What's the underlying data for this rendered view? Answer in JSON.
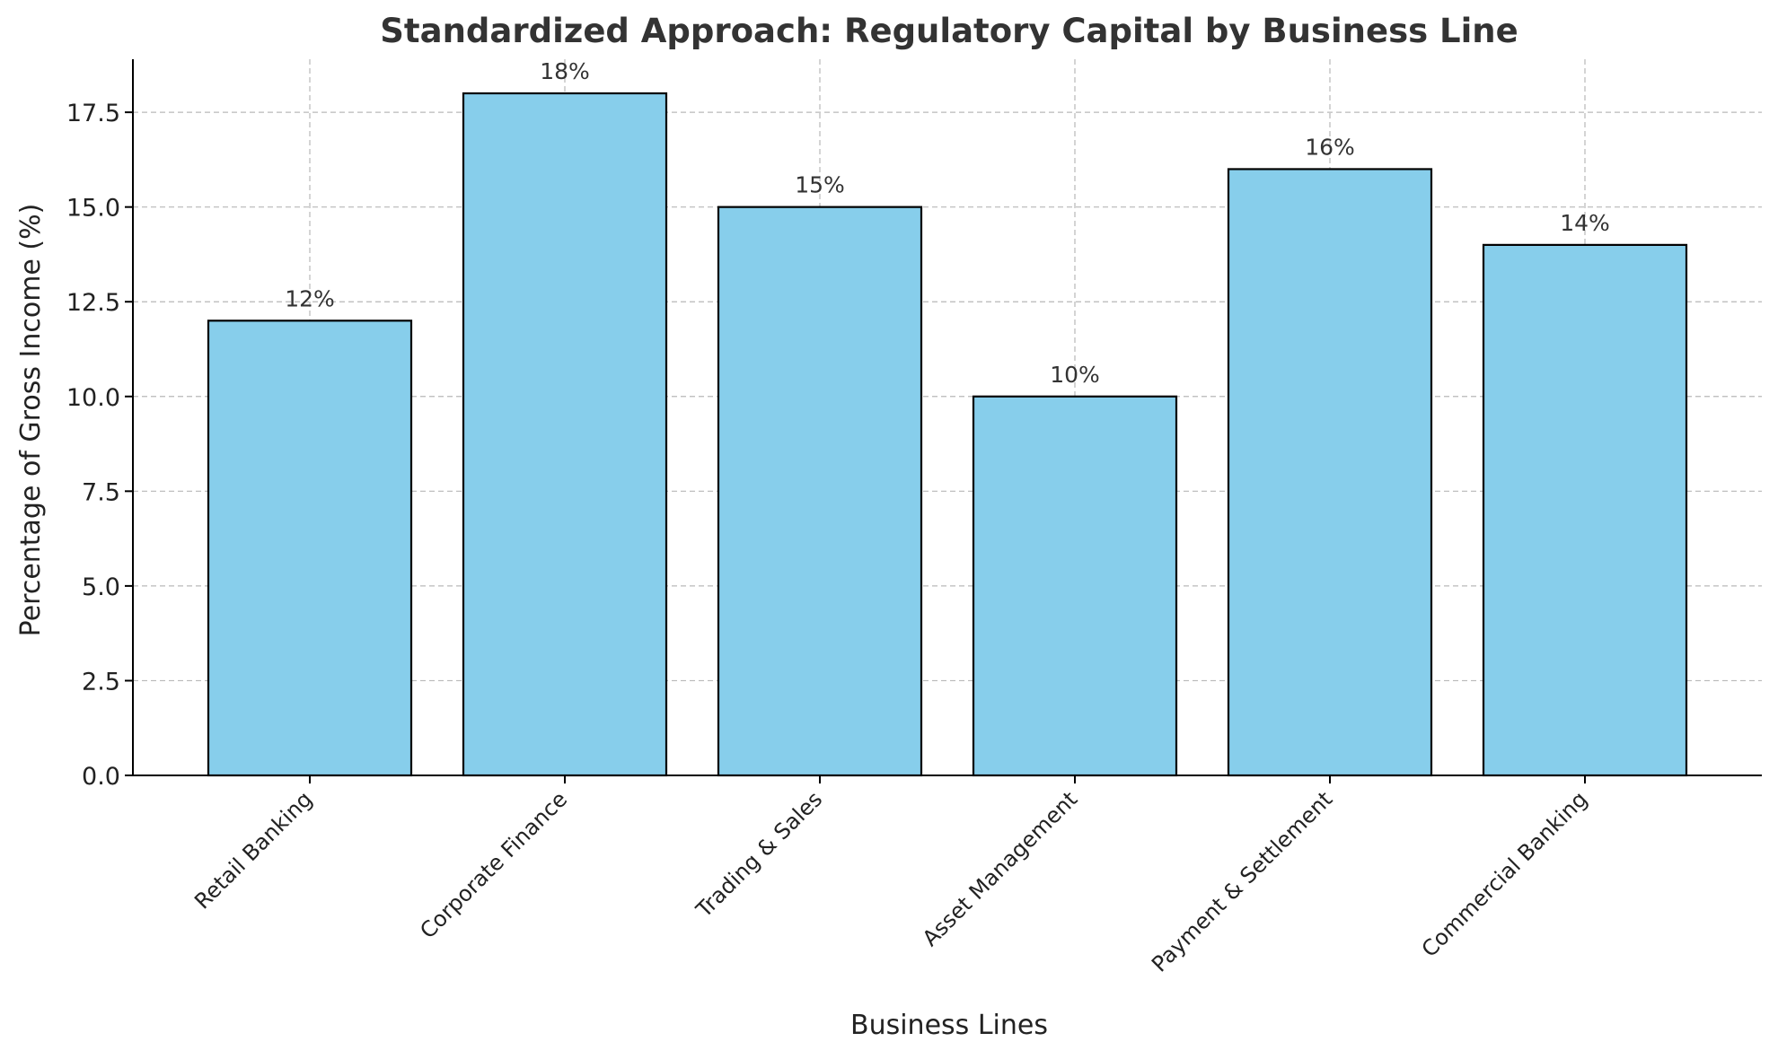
{
  "chart_data": {
    "type": "bar",
    "title": "Standardized Approach: Regulatory Capital by Business Line",
    "xlabel": "Business Lines",
    "ylabel": "Percentage of Gross Income (%)",
    "categories": [
      "Retail Banking",
      "Corporate Finance",
      "Trading & Sales",
      "Asset Management",
      "Payment & Settlement",
      "Commercial Banking"
    ],
    "values": [
      12,
      18,
      15,
      10,
      16,
      14
    ],
    "value_labels": [
      "12%",
      "18%",
      "15%",
      "10%",
      "16%",
      "14%"
    ],
    "ylim": [
      0,
      18.9
    ],
    "yticks": [
      0,
      2.5,
      5,
      7.5,
      10,
      12.5,
      15,
      17.5
    ],
    "ytick_labels": [
      "0.0",
      "2.5",
      "5.0",
      "7.5",
      "10.0",
      "12.5",
      "15.0",
      "17.5"
    ],
    "grid": true,
    "colors": {
      "bar_fill": "#87ceeb",
      "bar_edge": "#000000",
      "title": "#333333"
    }
  }
}
